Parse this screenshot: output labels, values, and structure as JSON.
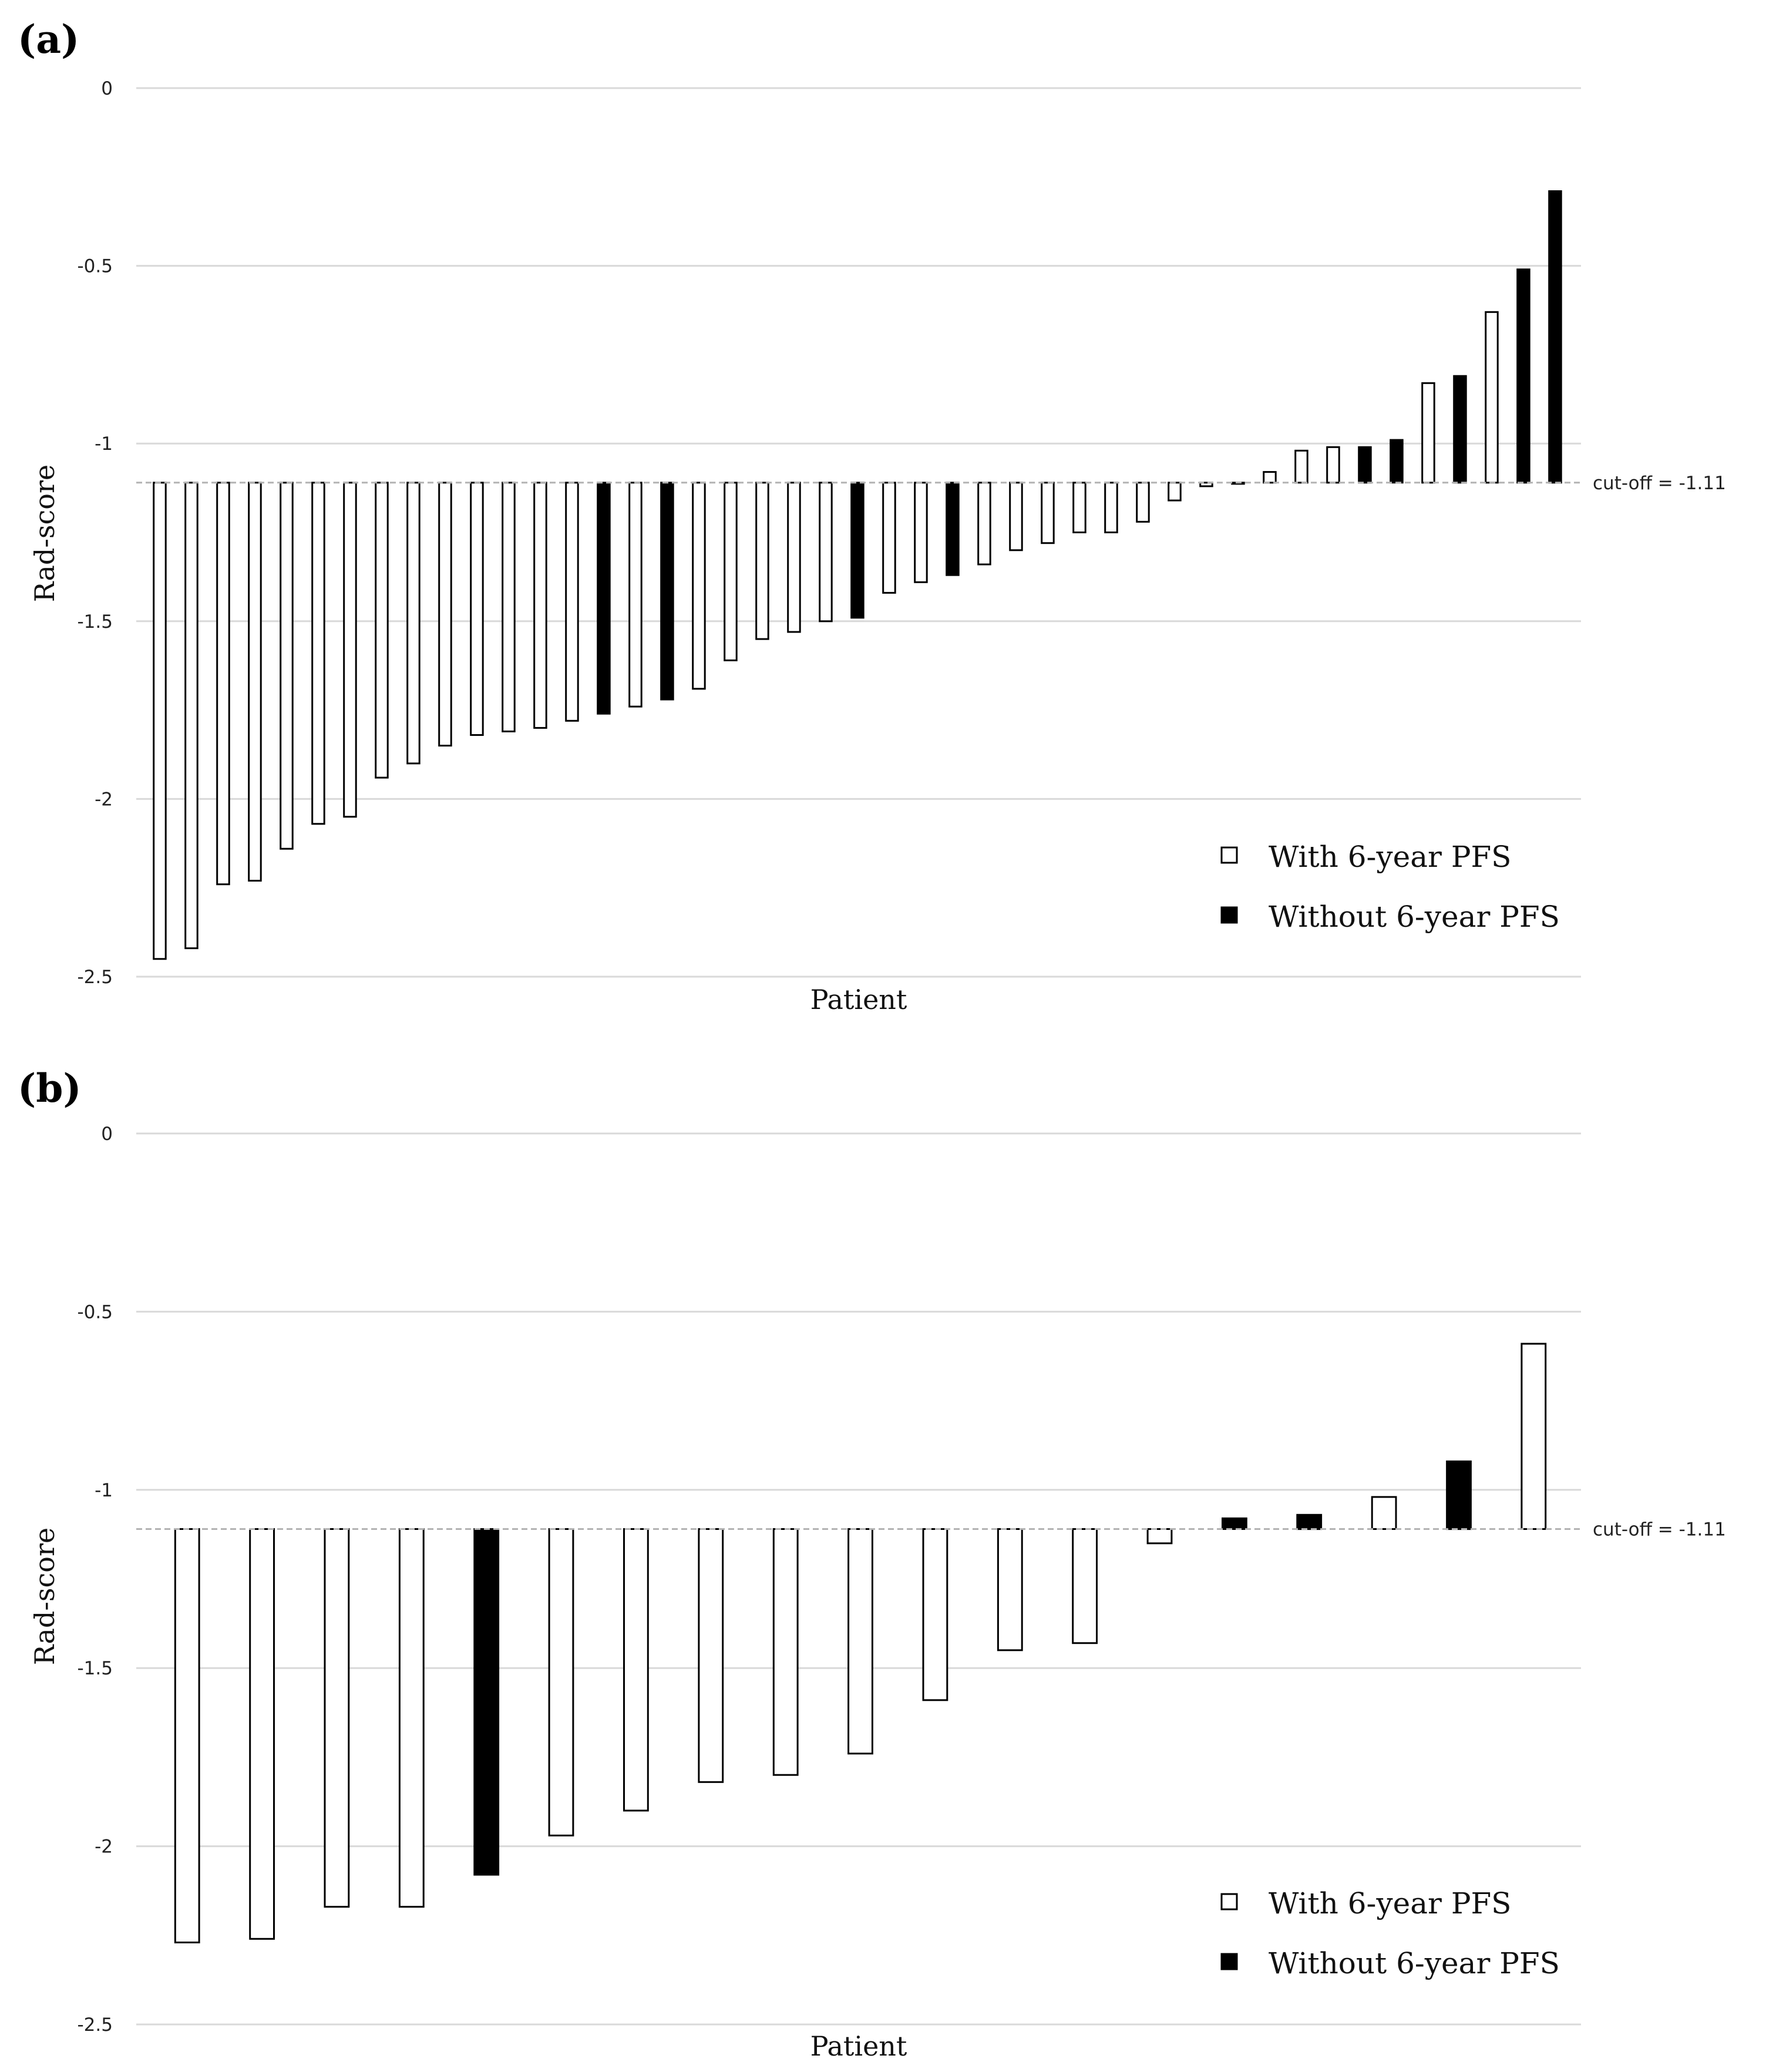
{
  "chart_data": [
    {
      "type": "bar",
      "panel_label": "(a)",
      "ylabel": "Rad-score",
      "xlabel": "Patient",
      "ylim": [
        -2.5,
        0
      ],
      "yticks": [
        "0",
        "-0.5",
        "-1",
        "-1.5",
        "-2",
        "-2.5"
      ],
      "cutoff": -1.11,
      "cutoff_label": "cut-off = -1.11",
      "legend": [
        {
          "label": "With 6-year PFS",
          "color": "#ffffff"
        },
        {
          "label": "Without 6-year PFS",
          "color": "#000000"
        }
      ],
      "values": [
        -2.45,
        -2.42,
        -2.24,
        -2.23,
        -2.14,
        -2.07,
        -2.05,
        -1.94,
        -1.9,
        -1.85,
        -1.82,
        -1.81,
        -1.8,
        -1.78,
        -1.76,
        -1.74,
        -1.72,
        -1.69,
        -1.61,
        -1.55,
        -1.53,
        -1.5,
        -1.49,
        -1.42,
        -1.39,
        -1.37,
        -1.34,
        -1.3,
        -1.28,
        -1.25,
        -1.25,
        -1.22,
        -1.16,
        -1.12,
        -1.11,
        -1.08,
        -1.02,
        -1.01,
        -1.01,
        -0.99,
        -0.83,
        -0.81,
        -0.63,
        -0.51,
        -0.29
      ],
      "outcome": [
        "with",
        "with",
        "with",
        "with",
        "with",
        "with",
        "with",
        "with",
        "with",
        "with",
        "with",
        "with",
        "with",
        "with",
        "without",
        "with",
        "without",
        "with",
        "with",
        "with",
        "with",
        "with",
        "without",
        "with",
        "with",
        "without",
        "with",
        "with",
        "with",
        "with",
        "with",
        "with",
        "with",
        "with",
        "with",
        "with",
        "with",
        "with",
        "without",
        "without",
        "with",
        "without",
        "with",
        "without",
        "without"
      ]
    },
    {
      "type": "bar",
      "panel_label": "(b)",
      "ylabel": "Rad-score",
      "xlabel": "Patient",
      "ylim": [
        -2.5,
        0
      ],
      "yticks": [
        "0",
        "-0.5",
        "-1",
        "-1.5",
        "-2",
        "-2.5"
      ],
      "cutoff": -1.11,
      "cutoff_label": "cut-off = -1.11",
      "legend": [
        {
          "label": "With 6-year PFS",
          "color": "#ffffff"
        },
        {
          "label": "Without 6-year PFS",
          "color": "#000000"
        }
      ],
      "values": [
        -2.27,
        -2.26,
        -2.17,
        -2.17,
        -2.08,
        -1.97,
        -1.9,
        -1.82,
        -1.8,
        -1.74,
        -1.59,
        -1.45,
        -1.43,
        -1.15,
        -1.08,
        -1.07,
        -1.02,
        -0.92,
        -0.59
      ],
      "outcome": [
        "with",
        "with",
        "with",
        "with",
        "without",
        "with",
        "with",
        "with",
        "with",
        "with",
        "with",
        "with",
        "with",
        "with",
        "without",
        "without",
        "with",
        "without",
        "with"
      ]
    }
  ]
}
